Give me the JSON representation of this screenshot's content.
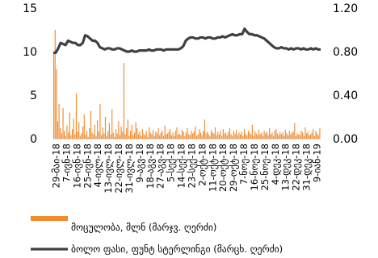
{
  "chart_data": {
    "type": "bar",
    "xlabel": "",
    "y_left": {
      "ylim": [
        0,
        15
      ],
      "ticks": [
        "0",
        "5",
        "10",
        "15"
      ]
    },
    "y_right": {
      "ylim": [
        0,
        1.2
      ],
      "ticks": [
        "0.00",
        "0.40",
        "0.80",
        "1.20"
      ]
    },
    "x_ticks": [
      "29-მაი-18",
      "7-ივნ-18",
      "16-ივნ-18",
      "25-ივნ-18",
      "4-ივლ-18",
      "13-ივლ-18",
      "22-ივლ-18",
      "31-ივლ-18",
      "9-აგვ-18",
      "18-აგვ-18",
      "27-აგვ-18",
      "5-სექ-18",
      "14-სექ-18",
      "23-სექ-18",
      "2-ოქტ-18",
      "11-ოქტ-18",
      "20-ოქტ-18",
      "29-ოქტ-18",
      "7-ნოე-18",
      "16-ნოე-18",
      "25-ნოე-18",
      "4-დეკ-18",
      "13-დეკ-18",
      "22-დეკ-18",
      "31-დეკ-18",
      "9-იან-19"
    ],
    "series": [
      {
        "name": "მოცულობა, მლნ (მარჯვ. ღერძი)",
        "axis": "left",
        "type": "bar",
        "color": "#f28a2e",
        "values": [
          10,
          12.5,
          8,
          2,
          4,
          1.2,
          0.6,
          3.5,
          0.9,
          0.3,
          1.5,
          0.7,
          3,
          0.4,
          1.1,
          2.3,
          0.5,
          5.2,
          0.8,
          1.9,
          0.3,
          0.6,
          1.4,
          2.8,
          0.4,
          0.9,
          0.2,
          1.2,
          3.2,
          0.7,
          0.5,
          1.6,
          0.3,
          2.1,
          0.8,
          4,
          0.4,
          1.3,
          0.6,
          2.5,
          0.3,
          0.9,
          1.8,
          0.5,
          3.4,
          0.7,
          0.2,
          1.1,
          0.6,
          2,
          0.4,
          1.4,
          0.8,
          8.7,
          0.5,
          1.2,
          2.2,
          0.3,
          0.9,
          1.6,
          0.4,
          0.7,
          1.9,
          1.2,
          0.5,
          0.8,
          0.3,
          1.1,
          0.6,
          0.4,
          0.9,
          0.2,
          1.3,
          0.7,
          0.5,
          1,
          0.3,
          0.8,
          0.6,
          1.2,
          0.4,
          0.7,
          0.9,
          0.3,
          1.5,
          0.5,
          0.6,
          0.8,
          1.1,
          0.4,
          0.7,
          0.3,
          0.9,
          1.3,
          0.5,
          0.6,
          0.4,
          1,
          0.8,
          0.3,
          0.7,
          1.2,
          0.5,
          0.4,
          0.9,
          0.6,
          0.8,
          1.4,
          0.3,
          0.5,
          1.1,
          0.7,
          0.4,
          0.9,
          2.2,
          0.6,
          0.8,
          0.5,
          0.3,
          1,
          0.7,
          0.6,
          1.3,
          0.4,
          0.8,
          0.5,
          0.9,
          0.3,
          1.1,
          0.6,
          0.7,
          0.4,
          0.8,
          1.2,
          0.5,
          0.3,
          0.9,
          0.6,
          1,
          0.4,
          0.7,
          0.5,
          0.8,
          0.3,
          1.1,
          0.6,
          0.4,
          0.9,
          0.7,
          0.5,
          1.6,
          0.3,
          0.8,
          0.6,
          0.4,
          1,
          0.5,
          0.7,
          0.3,
          0.9,
          0.6,
          0.8,
          0.4,
          1.2,
          0.5,
          0.7,
          0.3,
          0.9,
          1.1,
          0.6,
          0.4,
          0.8,
          0.5,
          0.7,
          0.3,
          1,
          0.6,
          0.4,
          0.9,
          0.5,
          0.7,
          0.8,
          1.8,
          0.3,
          0.6,
          0.5,
          0.4,
          0.9,
          0.7,
          0.3,
          1.3,
          0.6,
          0.8,
          0.4,
          0.5,
          0.7,
          1.1,
          0.3,
          0.9,
          0.6,
          0.4,
          1.2
        ]
      },
      {
        "name": "ბოლო ფასი, ფუნტ სტერლინგი (მარცხ. ღერძი)",
        "axis": "right",
        "type": "line",
        "color": "#404040",
        "values": [
          0.79,
          0.79,
          0.83,
          0.88,
          0.87,
          0.86,
          0.9,
          0.89,
          0.88,
          0.88,
          0.86,
          0.86,
          0.88,
          0.95,
          0.94,
          0.92,
          0.9,
          0.9,
          0.88,
          0.84,
          0.83,
          0.82,
          0.83,
          0.83,
          0.82,
          0.82,
          0.83,
          0.83,
          0.82,
          0.81,
          0.8,
          0.8,
          0.81,
          0.8,
          0.8,
          0.81,
          0.81,
          0.81,
          0.81,
          0.82,
          0.81,
          0.81,
          0.82,
          0.82,
          0.82,
          0.81,
          0.82,
          0.82,
          0.82,
          0.82,
          0.82,
          0.82,
          0.83,
          0.85,
          0.9,
          0.92,
          0.93,
          0.93,
          0.92,
          0.92,
          0.93,
          0.93,
          0.92,
          0.93,
          0.93,
          0.92,
          0.92,
          0.93,
          0.93,
          0.94,
          0.93,
          0.94,
          0.95,
          0.96,
          0.95,
          0.95,
          0.96,
          0.96,
          1.01,
          0.98,
          0.96,
          0.96,
          0.95,
          0.95,
          0.94,
          0.93,
          0.92,
          0.9,
          0.88,
          0.86,
          0.84,
          0.83,
          0.83,
          0.84,
          0.83,
          0.83,
          0.82,
          0.83,
          0.82,
          0.83,
          0.83,
          0.82,
          0.83,
          0.82,
          0.82,
          0.83,
          0.82,
          0.83,
          0.82,
          0.82
        ]
      }
    ],
    "legend": {
      "position": "bottom"
    }
  }
}
